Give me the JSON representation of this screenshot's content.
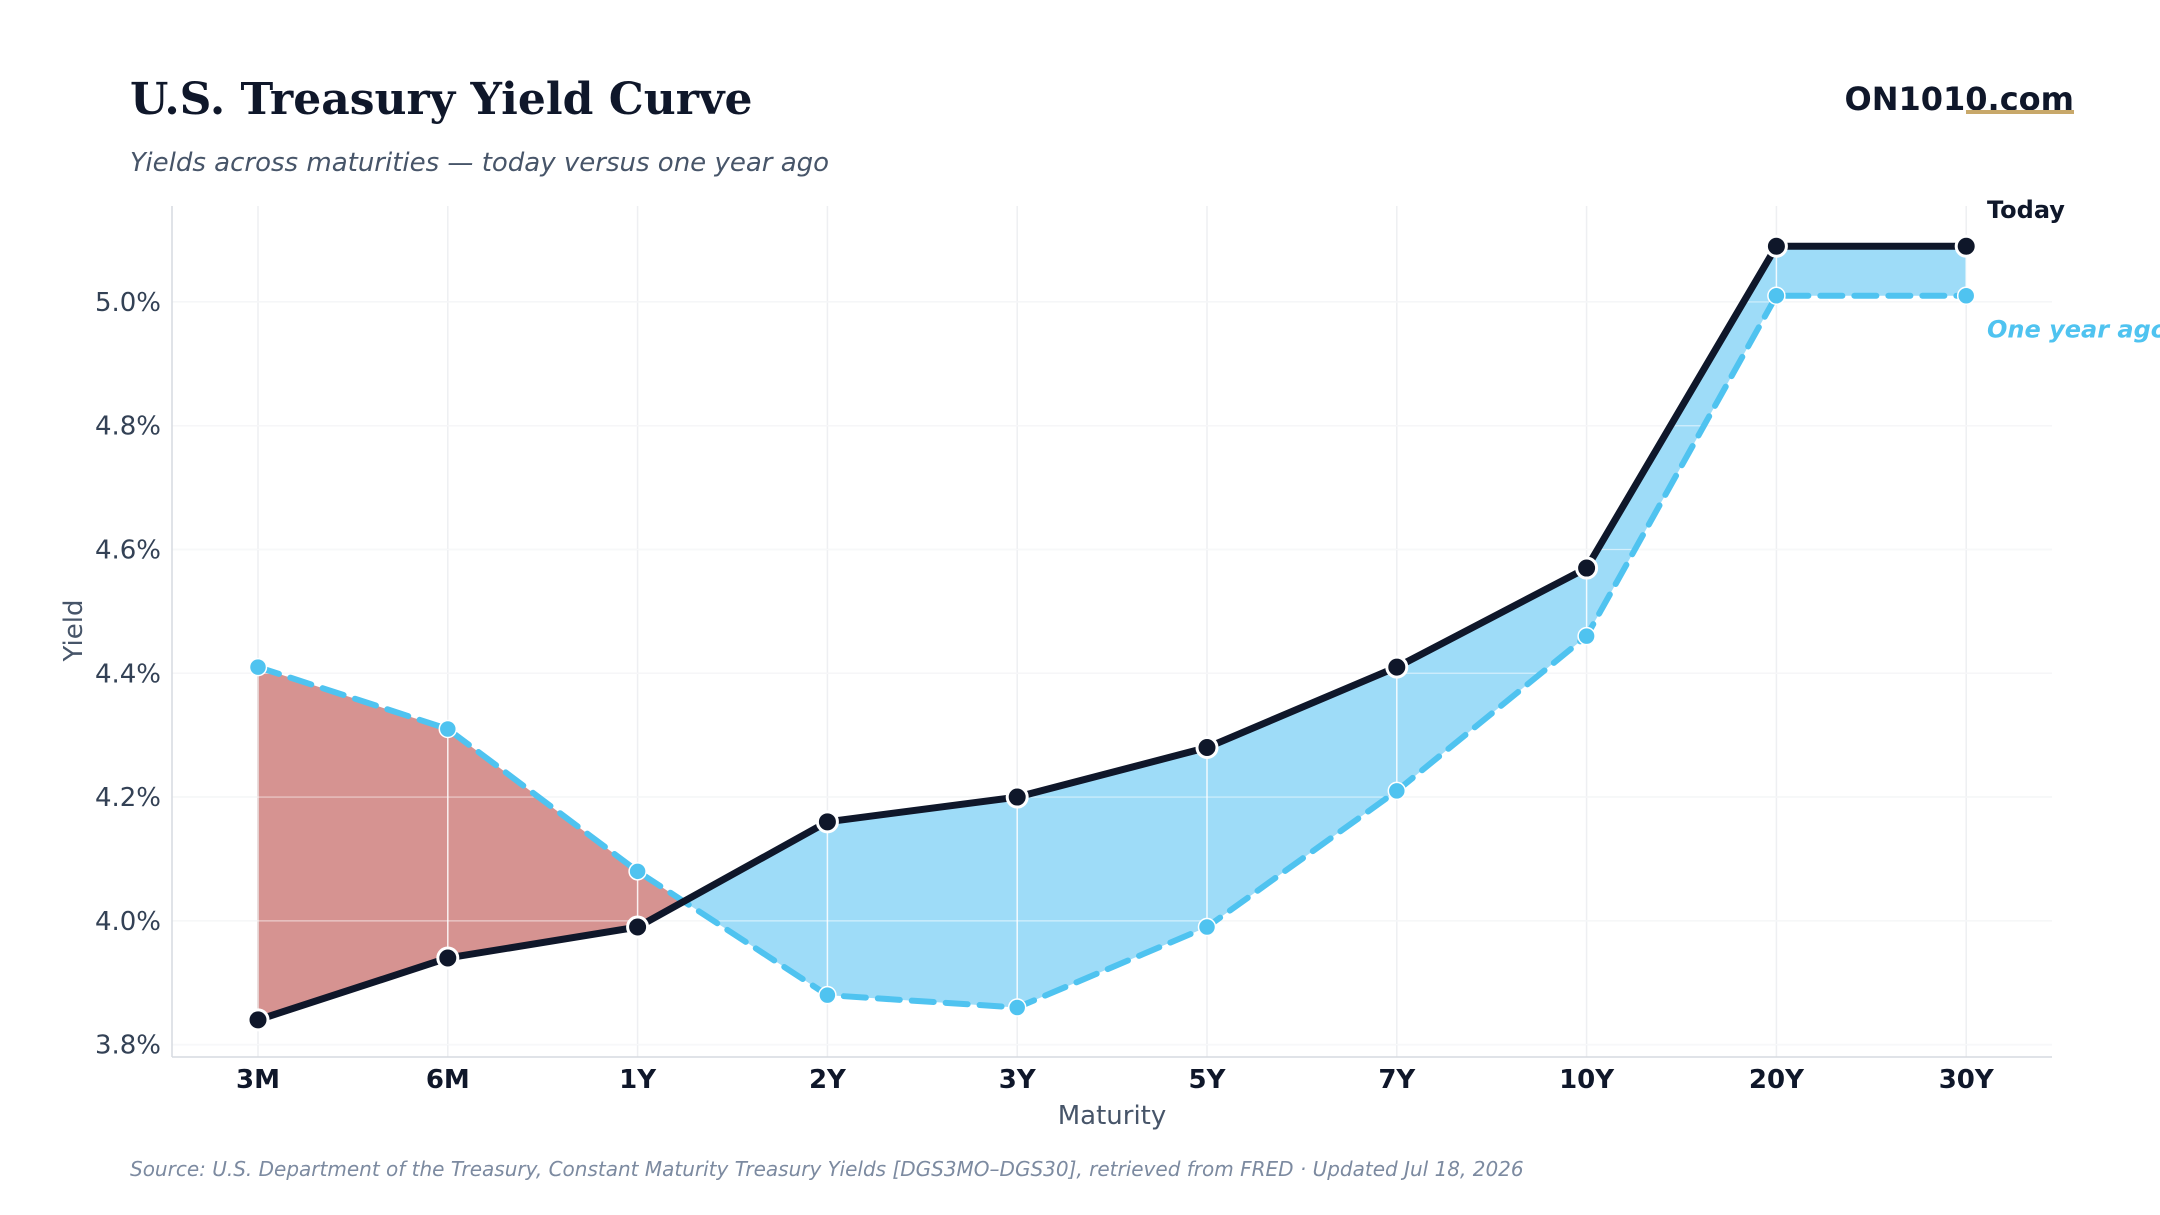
{
  "header": {
    "title": "U.S. Treasury Yield Curve",
    "subtitle": "Yields across maturities — today versus one year ago",
    "brand": "ON1010.com"
  },
  "footer": {
    "source": "Source: U.S. Department of the Treasury, Constant Maturity Treasury Yields [DGS3MO–DGS30], retrieved from FRED · Updated Jul 18, 2026"
  },
  "colors": {
    "today_line": "#0f172a",
    "ago_line": "#4fc3f0",
    "fill_higher_today": "#9edcf8",
    "fill_lower_today": "#d69391",
    "grid": "#eeeff2"
  },
  "chart_data": {
    "type": "line",
    "xlabel": "Maturity",
    "ylabel": "Yield",
    "categories": [
      "3M",
      "6M",
      "1Y",
      "2Y",
      "3Y",
      "5Y",
      "7Y",
      "10Y",
      "20Y",
      "30Y"
    ],
    "ylim": [
      3.78,
      5.155
    ],
    "yticks": [
      3.8,
      4.0,
      4.2,
      4.4,
      4.6,
      4.8,
      5.0
    ],
    "ytick_labels": [
      "3.8%",
      "4.0%",
      "4.2%",
      "4.4%",
      "4.6%",
      "4.8%",
      "5.0%"
    ],
    "grid": true,
    "legend": "direct-labels-right",
    "series": [
      {
        "name": "Today",
        "style": "solid",
        "values": [
          3.84,
          3.94,
          3.99,
          4.16,
          4.2,
          4.28,
          4.41,
          4.57,
          5.09,
          5.09
        ]
      },
      {
        "name": "One year ago",
        "style": "dashed",
        "values": [
          4.41,
          4.31,
          4.08,
          3.88,
          3.86,
          3.99,
          4.21,
          4.46,
          5.01,
          5.01
        ]
      }
    ]
  }
}
